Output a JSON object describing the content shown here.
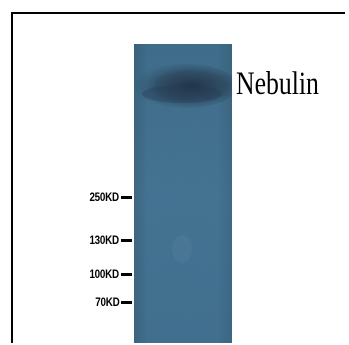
{
  "protein_label": "Nebulin",
  "markers": [
    {
      "label": "250KD",
      "kd": 250
    },
    {
      "label": "130KD",
      "kd": 130
    },
    {
      "label": "100KD",
      "kd": 100
    },
    {
      "label": "70KD",
      "kd": 70
    }
  ],
  "colors": {
    "membrane": "#3f6f8e",
    "band": "#1f3346"
  }
}
